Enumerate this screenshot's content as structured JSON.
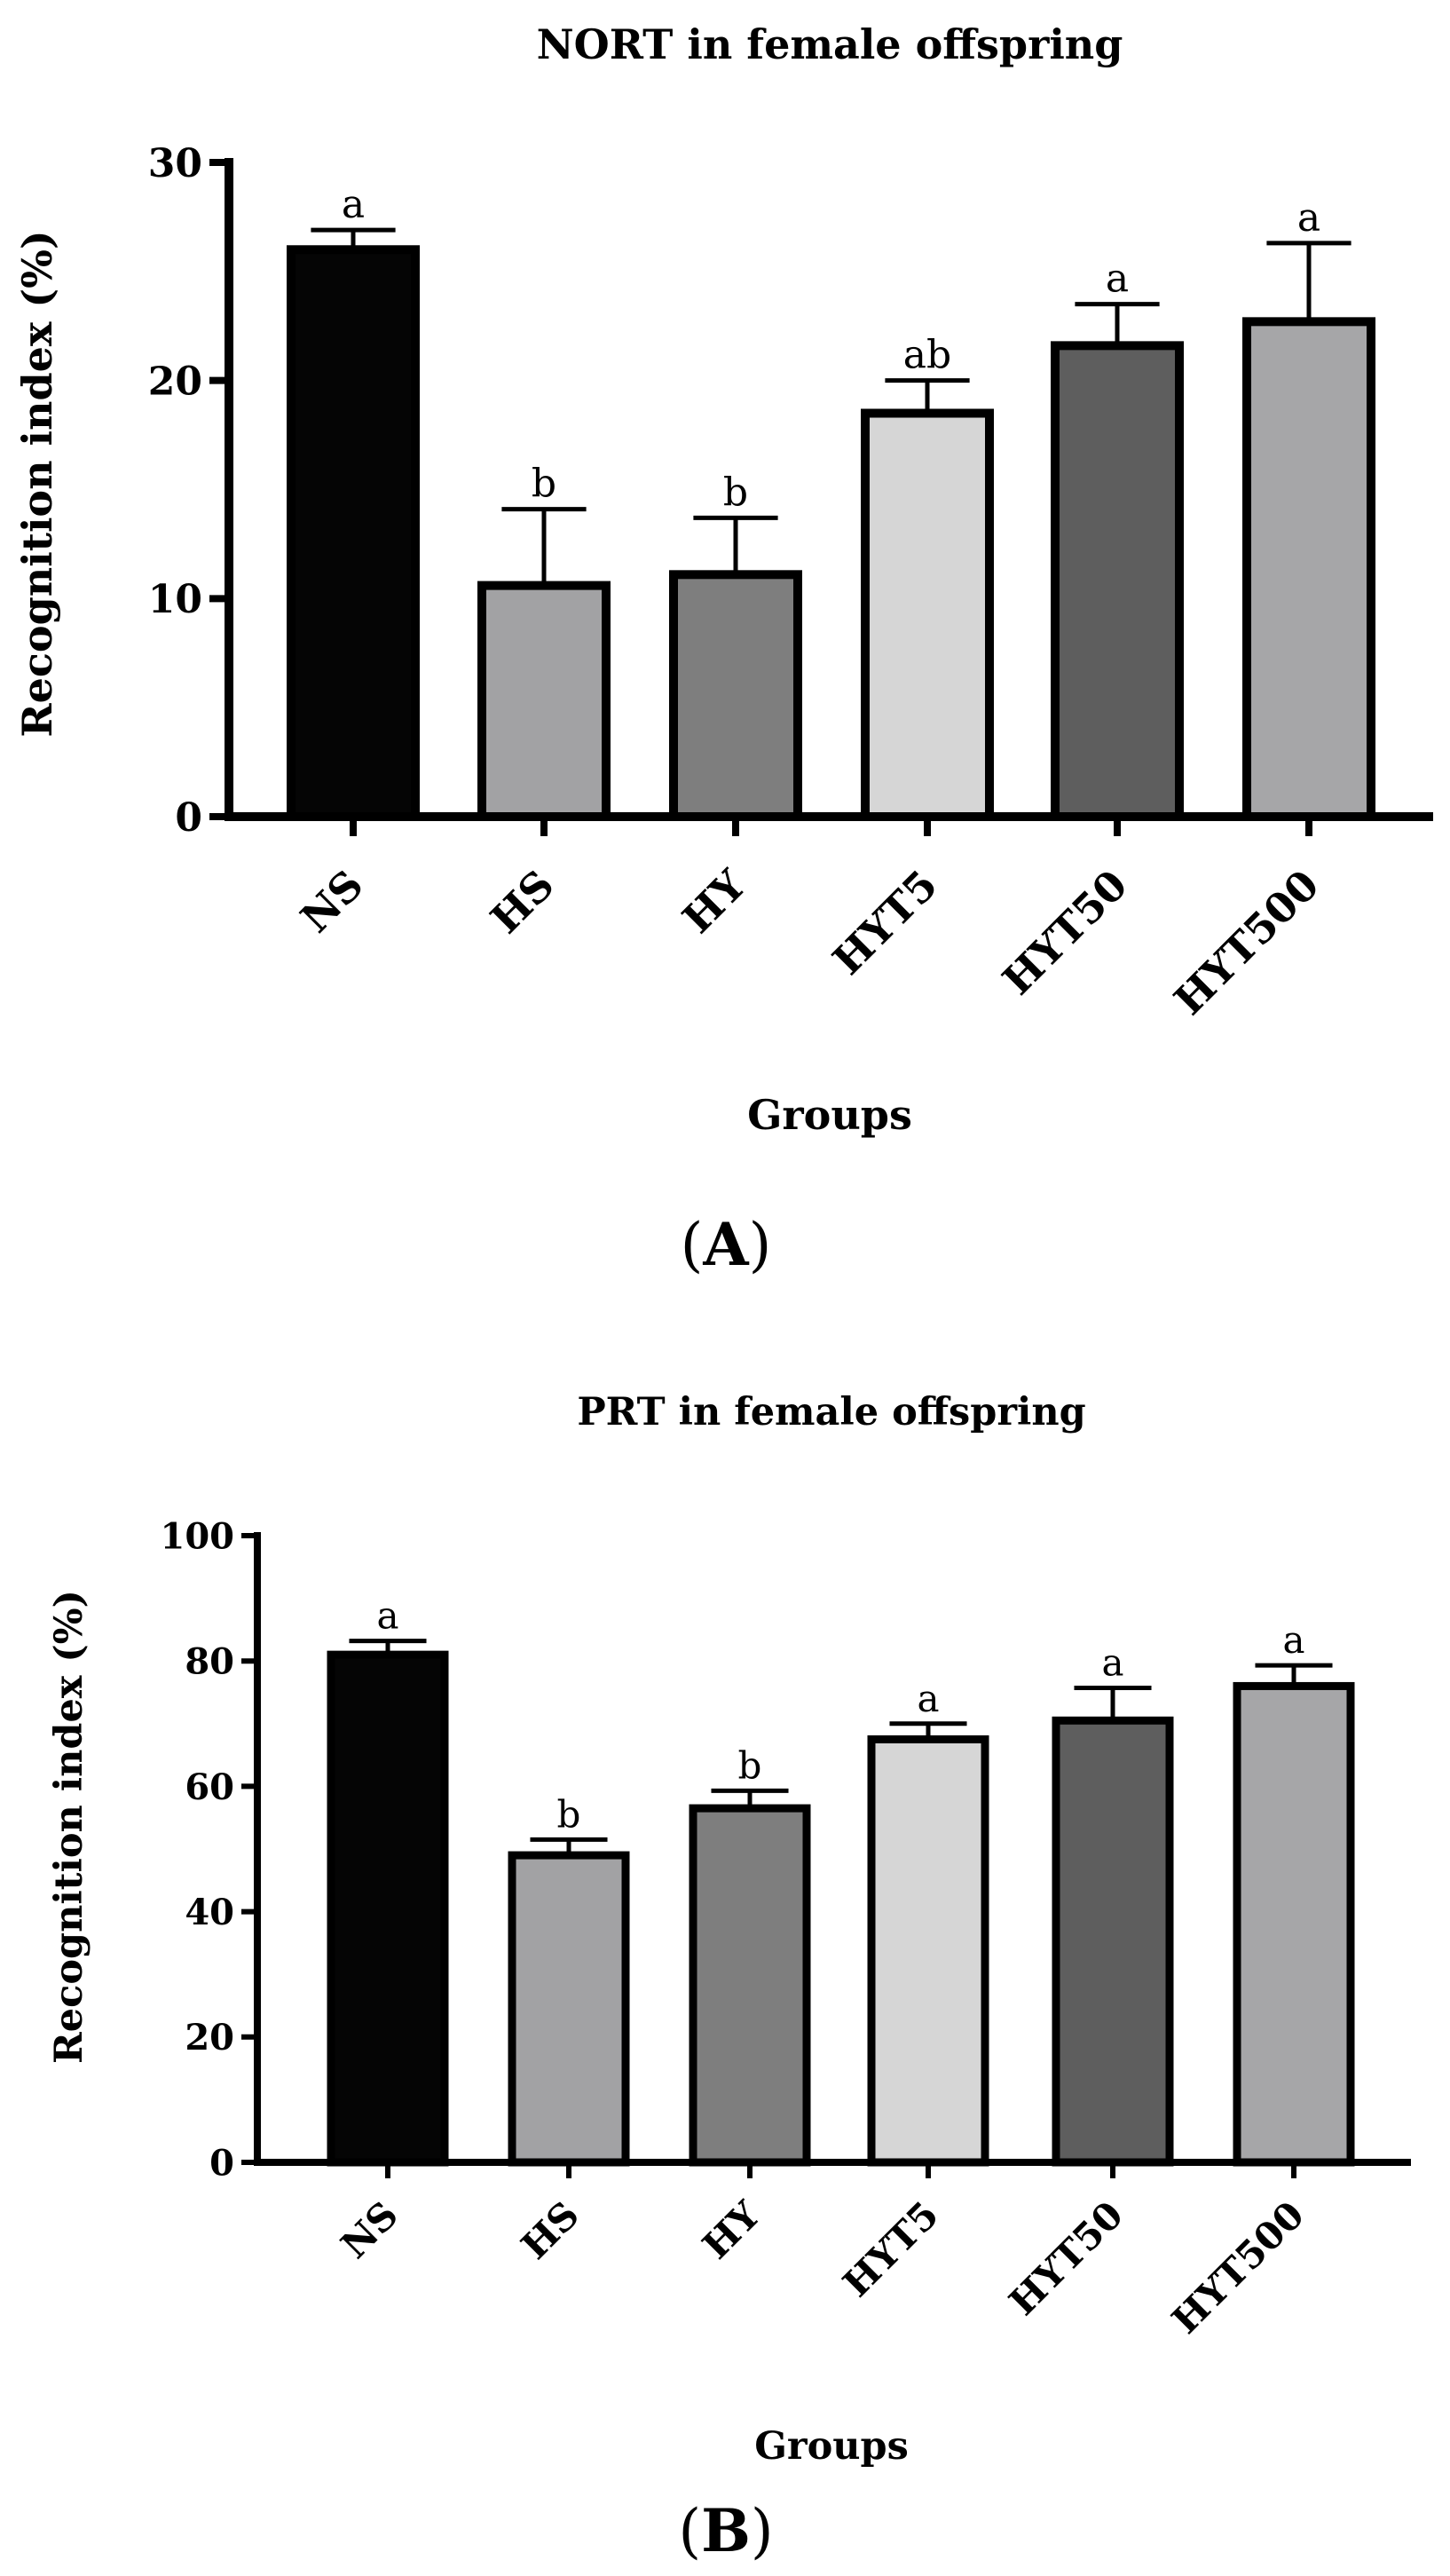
{
  "chart_data": [
    {
      "type": "bar",
      "panel_label": "A",
      "title": "NORT in female offspring",
      "xlabel": "Groups",
      "ylabel": "Recognition index (%)",
      "ylim": [
        0,
        30
      ],
      "yticks": [
        0,
        10,
        20,
        30
      ],
      "categories": [
        "NS",
        "HS",
        "HY",
        "HYT5",
        "HYT50",
        "HYT500"
      ],
      "values": [
        26.0,
        10.6,
        11.1,
        18.5,
        21.6,
        22.7
      ],
      "errors": [
        0.9,
        3.5,
        2.6,
        1.5,
        1.9,
        3.6
      ],
      "significance": [
        "a",
        "b",
        "b",
        "ab",
        "a",
        "a"
      ],
      "colors": [
        "#050505",
        "#a2a2a4",
        "#7e7e7e",
        "#d6d6d6",
        "#5e5e5e",
        "#a6a6a8"
      ]
    },
    {
      "type": "bar",
      "panel_label": "B",
      "title": "PRT in female offspring",
      "xlabel": "Groups",
      "ylabel": "Recognition index (%)",
      "ylim": [
        0,
        100
      ],
      "yticks": [
        0,
        20,
        40,
        60,
        80,
        100
      ],
      "categories": [
        "NS",
        "HS",
        "HY",
        "HYT5",
        "HYT50",
        "HYT500"
      ],
      "values": [
        81.0,
        49.0,
        56.5,
        67.5,
        70.5,
        76.0
      ],
      "errors": [
        2.2,
        2.5,
        2.8,
        2.5,
        5.2,
        3.3
      ],
      "significance": [
        "a",
        "b",
        "b",
        "a",
        "a",
        "a"
      ],
      "colors": [
        "#050505",
        "#a2a2a4",
        "#7e7e7e",
        "#d6d6d6",
        "#5e5e5e",
        "#a6a6a8"
      ]
    }
  ]
}
